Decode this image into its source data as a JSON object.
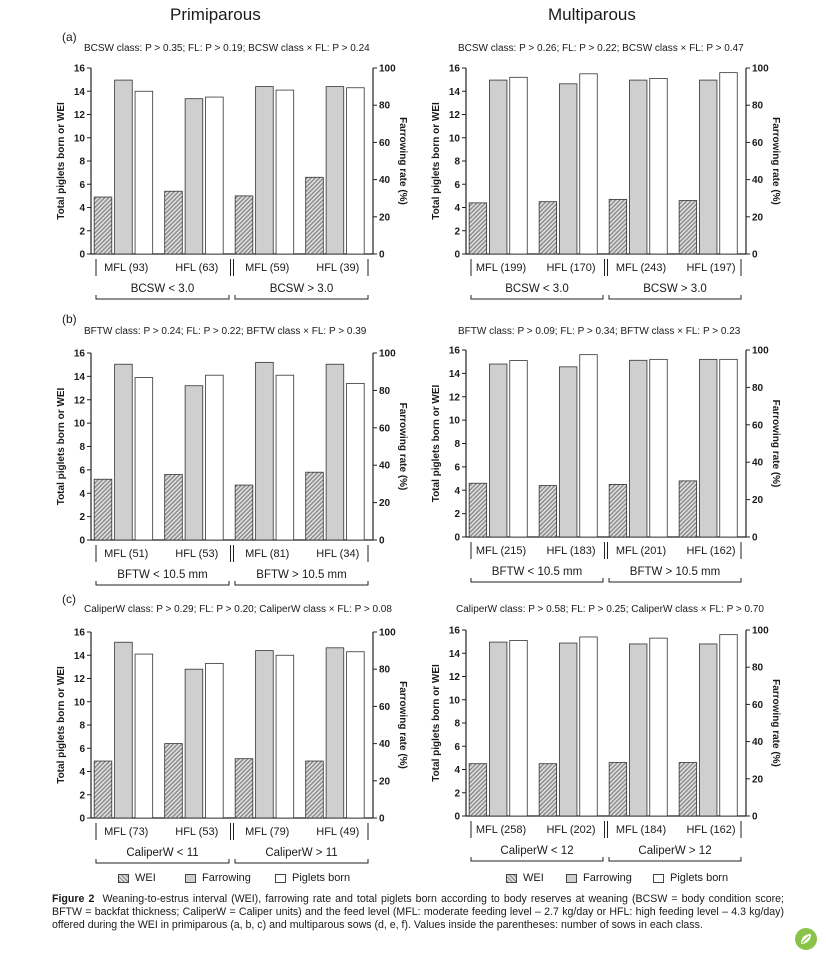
{
  "columns": {
    "left_title": "Primiparous",
    "right_title": "Multiparous"
  },
  "panel_letters": [
    "(a)",
    "(b)",
    "(c)"
  ],
  "axes": {
    "left_label": "Total piglets born or WEI",
    "right_label": "Farrowing rate (%)",
    "ylim_left": [
      0,
      16
    ],
    "ylim_right": [
      0,
      100
    ]
  },
  "legend": {
    "wei": "WEI",
    "farrowing": "Farrowing",
    "piglets": "Piglets born"
  },
  "colors": {
    "wei": "#9a9a9a",
    "farrowing": "#cfcfcf",
    "piglets": "#ffffff",
    "outline": "#333333"
  },
  "caption": {
    "label": "Figure 2",
    "text": "Weaning-to-estrus interval (WEI), farrowing rate and total piglets born according to body reserves at weaning (BCSW = body condition score; BFTW = backfat thickness; CaliperW = Caliper units) and the feed level (MFL: moderate feeding level – 2.7 kg/day or HFL: high feeding level – 4.3 kg/day) offered during the WEI in primiparous (a, b, c) and multiparous sows (d, e, f). Values inside the parentheses: number of sows in each class."
  },
  "chart_data": [
    {
      "type": "bar",
      "panel": "a-primiparous",
      "stat": "BCSW class: P > 0.35; FL: P > 0.19; BCSW class × FL: P > 0.24",
      "categories": [
        "MFL (93)",
        "HFL (63)",
        "MFL (59)",
        "HFL (39)"
      ],
      "groups": [
        "BCSW < 3.0",
        "BCSW > 3.0"
      ],
      "series": [
        {
          "name": "WEI",
          "axis": "left",
          "values": [
            4.9,
            5.4,
            5.0,
            6.6
          ]
        },
        {
          "name": "Farrowing",
          "axis": "right",
          "values": [
            93.5,
            83.5,
            90.0,
            90.0
          ]
        },
        {
          "name": "Piglets born",
          "axis": "left",
          "values": [
            14.0,
            13.5,
            14.1,
            14.3
          ]
        }
      ]
    },
    {
      "type": "bar",
      "panel": "d-multiparous",
      "stat": "BCSW class: P > 0.26; FL: P > 0.22; BCSW class × FL: P > 0.47",
      "categories": [
        "MFL (199)",
        "HFL (170)",
        "MFL (243)",
        "HFL (197)"
      ],
      "groups": [
        "BCSW < 3.0",
        "BCSW > 3.0"
      ],
      "series": [
        {
          "name": "WEI",
          "axis": "left",
          "values": [
            4.4,
            4.5,
            4.7,
            4.6
          ]
        },
        {
          "name": "Farrowing",
          "axis": "right",
          "values": [
            93.5,
            91.5,
            93.5,
            93.5
          ]
        },
        {
          "name": "Piglets born",
          "axis": "left",
          "values": [
            15.2,
            15.5,
            15.1,
            15.6
          ]
        }
      ]
    },
    {
      "type": "bar",
      "panel": "b-primiparous",
      "stat": "BFTW class: P > 0.24; FL: P > 0.22; BFTW class × FL: P > 0.39",
      "categories": [
        "MFL (51)",
        "HFL (53)",
        "MFL (81)",
        "HFL (34)"
      ],
      "groups": [
        "BFTW < 10.5 mm",
        "BFTW > 10.5 mm"
      ],
      "series": [
        {
          "name": "WEI",
          "axis": "left",
          "values": [
            5.2,
            5.6,
            4.7,
            5.8
          ]
        },
        {
          "name": "Farrowing",
          "axis": "right",
          "values": [
            94.0,
            82.5,
            95.0,
            94.0
          ]
        },
        {
          "name": "Piglets born",
          "axis": "left",
          "values": [
            13.9,
            14.1,
            14.1,
            13.4
          ]
        }
      ]
    },
    {
      "type": "bar",
      "panel": "e-multiparous",
      "stat": "BFTW class: P > 0.09; FL: P > 0.34; BFTW class × FL: P > 0.23",
      "categories": [
        "MFL (215)",
        "HFL (183)",
        "MFL (201)",
        "HFL (162)"
      ],
      "groups": [
        "BFTW < 10.5 mm",
        "BFTW > 10.5 mm"
      ],
      "series": [
        {
          "name": "WEI",
          "axis": "left",
          "values": [
            4.6,
            4.4,
            4.5,
            4.8
          ]
        },
        {
          "name": "Farrowing",
          "axis": "right",
          "values": [
            92.5,
            91.0,
            94.5,
            95.0
          ]
        },
        {
          "name": "Piglets born",
          "axis": "left",
          "values": [
            15.1,
            15.6,
            15.2,
            15.2
          ]
        }
      ]
    },
    {
      "type": "bar",
      "panel": "c-primiparous",
      "stat": "CaliperW class: P > 0.29; FL: P > 0.20; CaliperW class × FL: P > 0.08",
      "categories": [
        "MFL (73)",
        "HFL (53)",
        "MFL (79)",
        "HFL (49)"
      ],
      "groups": [
        "CaliperW < 11",
        "CaliperW > 11"
      ],
      "series": [
        {
          "name": "WEI",
          "axis": "left",
          "values": [
            4.9,
            6.4,
            5.1,
            4.9
          ]
        },
        {
          "name": "Farrowing",
          "axis": "right",
          "values": [
            94.5,
            80.0,
            90.0,
            91.5
          ]
        },
        {
          "name": "Piglets born",
          "axis": "left",
          "values": [
            14.1,
            13.3,
            14.0,
            14.3
          ]
        }
      ]
    },
    {
      "type": "bar",
      "panel": "f-multiparous",
      "stat": "CaliperW class: P > 0.58; FL: P > 0.25; CaliperW class × FL: P > 0.70",
      "categories": [
        "MFL (258)",
        "HFL (202)",
        "MFL (184)",
        "HFL (162)"
      ],
      "groups": [
        "CaliperW < 12",
        "CaliperW > 12"
      ],
      "series": [
        {
          "name": "WEI",
          "axis": "left",
          "values": [
            4.5,
            4.5,
            4.6,
            4.6
          ]
        },
        {
          "name": "Farrowing",
          "axis": "right",
          "values": [
            93.5,
            93.0,
            92.5,
            92.5
          ]
        },
        {
          "name": "Piglets born",
          "axis": "left",
          "values": [
            15.1,
            15.4,
            15.3,
            15.6
          ]
        }
      ]
    }
  ]
}
